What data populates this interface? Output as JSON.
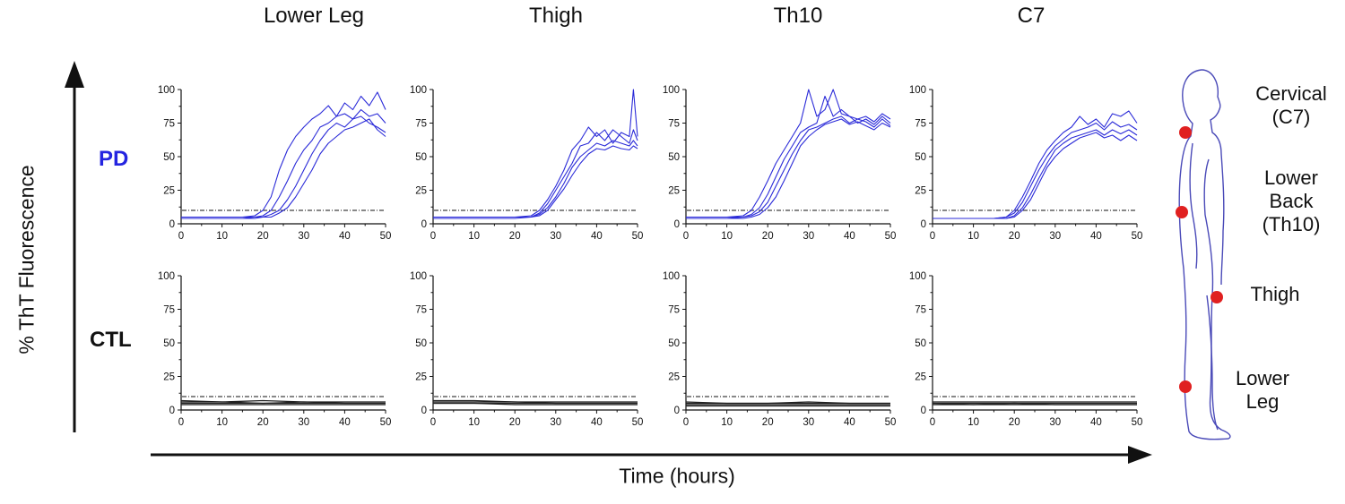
{
  "figure": {
    "y_axis_title": "% ThT Fluorescence",
    "x_axis_title": "Time (hours)",
    "columns": [
      "Lower Leg",
      "Thigh",
      "Th10",
      "C7"
    ],
    "rows": [
      {
        "label": "PD",
        "color": "#2424e0"
      },
      {
        "label": "CTL",
        "color": "#111111"
      }
    ],
    "body_sites": [
      "Cervical\n(C7)",
      "Lower\nBack\n(Th10)",
      "Thigh",
      "Lower\nLeg"
    ],
    "colors": {
      "pd_trace": "#2a2ad8",
      "ctl_trace": "#222222",
      "marker": "#e02020",
      "body_outline": "#4a4ab8",
      "threshold": "#111111"
    }
  },
  "chart_data": [
    {
      "type": "line",
      "panel": "Lower Leg / PD",
      "xlim": [
        0,
        50
      ],
      "ylim": [
        0,
        100
      ],
      "xticks": [
        0,
        10,
        20,
        30,
        40,
        50
      ],
      "yticks": [
        0,
        25,
        50,
        75,
        100
      ],
      "threshold": 10,
      "x": [
        0,
        5,
        10,
        15,
        18,
        20,
        22,
        24,
        26,
        28,
        30,
        32,
        34,
        36,
        38,
        40,
        42,
        44,
        46,
        48,
        50
      ],
      "series": [
        {
          "values": [
            5,
            5,
            5,
            5,
            6,
            10,
            20,
            40,
            55,
            65,
            72,
            78,
            82,
            88,
            80,
            90,
            85,
            95,
            88,
            98,
            85
          ]
        },
        {
          "values": [
            4,
            4,
            4,
            4,
            5,
            6,
            10,
            20,
            32,
            45,
            55,
            62,
            72,
            75,
            80,
            82,
            78,
            85,
            80,
            82,
            75
          ]
        },
        {
          "values": [
            5,
            5,
            5,
            5,
            5,
            5,
            7,
            10,
            18,
            28,
            40,
            52,
            62,
            70,
            75,
            72,
            78,
            80,
            75,
            72,
            68
          ]
        },
        {
          "values": [
            4,
            4,
            4,
            4,
            4,
            5,
            5,
            8,
            12,
            20,
            30,
            40,
            52,
            60,
            65,
            70,
            72,
            75,
            78,
            70,
            65
          ]
        }
      ]
    },
    {
      "type": "line",
      "panel": "Thigh / PD",
      "xlim": [
        0,
        50
      ],
      "ylim": [
        0,
        100
      ],
      "xticks": [
        0,
        10,
        20,
        30,
        40,
        50
      ],
      "yticks": [
        0,
        25,
        50,
        75,
        100
      ],
      "threshold": 10,
      "x": [
        0,
        5,
        10,
        15,
        20,
        24,
        26,
        28,
        30,
        32,
        34,
        36,
        38,
        40,
        42,
        44,
        46,
        48,
        49,
        50
      ],
      "series": [
        {
          "values": [
            5,
            5,
            5,
            5,
            5,
            6,
            10,
            18,
            28,
            40,
            55,
            62,
            72,
            65,
            70,
            60,
            68,
            65,
            100,
            65
          ]
        },
        {
          "values": [
            5,
            5,
            5,
            5,
            5,
            5,
            8,
            15,
            25,
            35,
            45,
            58,
            60,
            68,
            62,
            70,
            65,
            60,
            70,
            62
          ]
        },
        {
          "values": [
            4,
            4,
            4,
            4,
            4,
            5,
            7,
            12,
            20,
            30,
            42,
            50,
            55,
            60,
            58,
            62,
            60,
            58,
            62,
            58
          ]
        },
        {
          "values": [
            5,
            5,
            5,
            5,
            5,
            5,
            6,
            10,
            18,
            26,
            36,
            45,
            52,
            56,
            55,
            58,
            56,
            55,
            58,
            56
          ]
        }
      ]
    },
    {
      "type": "line",
      "panel": "Th10 / PD",
      "xlim": [
        0,
        50
      ],
      "ylim": [
        0,
        100
      ],
      "xticks": [
        0,
        10,
        20,
        30,
        40,
        50
      ],
      "yticks": [
        0,
        25,
        50,
        75,
        100
      ],
      "threshold": 10,
      "x": [
        0,
        5,
        10,
        14,
        16,
        18,
        20,
        22,
        24,
        26,
        28,
        30,
        32,
        34,
        36,
        38,
        40,
        42,
        44,
        46,
        48,
        50
      ],
      "series": [
        {
          "values": [
            5,
            5,
            5,
            6,
            10,
            20,
            32,
            45,
            55,
            65,
            75,
            100,
            80,
            85,
            100,
            82,
            80,
            78,
            80,
            76,
            82,
            78
          ]
        },
        {
          "values": [
            4,
            4,
            4,
            5,
            7,
            12,
            22,
            35,
            48,
            58,
            68,
            72,
            75,
            95,
            80,
            85,
            80,
            75,
            78,
            74,
            80,
            75
          ]
        },
        {
          "values": [
            5,
            5,
            5,
            5,
            6,
            9,
            16,
            28,
            40,
            52,
            62,
            70,
            72,
            75,
            78,
            80,
            75,
            78,
            76,
            72,
            78,
            73
          ]
        },
        {
          "values": [
            4,
            4,
            4,
            4,
            5,
            7,
            12,
            20,
            32,
            45,
            58,
            65,
            70,
            74,
            76,
            78,
            74,
            76,
            73,
            70,
            75,
            72
          ]
        }
      ]
    },
    {
      "type": "line",
      "panel": "C7 / PD",
      "xlim": [
        0,
        50
      ],
      "ylim": [
        0,
        100
      ],
      "xticks": [
        0,
        10,
        20,
        30,
        40,
        50
      ],
      "yticks": [
        0,
        25,
        50,
        75,
        100
      ],
      "threshold": 10,
      "x": [
        0,
        5,
        10,
        15,
        18,
        20,
        22,
        24,
        26,
        28,
        30,
        32,
        34,
        36,
        38,
        40,
        42,
        44,
        46,
        48,
        50
      ],
      "series": [
        {
          "values": [
            4,
            4,
            4,
            4,
            5,
            10,
            20,
            32,
            45,
            55,
            62,
            68,
            72,
            80,
            74,
            78,
            72,
            82,
            80,
            84,
            75
          ]
        },
        {
          "values": [
            4,
            4,
            4,
            4,
            5,
            8,
            16,
            28,
            40,
            50,
            58,
            63,
            68,
            70,
            72,
            75,
            70,
            76,
            72,
            74,
            70
          ]
        },
        {
          "values": [
            4,
            4,
            4,
            4,
            4,
            6,
            12,
            22,
            34,
            45,
            55,
            60,
            64,
            66,
            68,
            70,
            66,
            70,
            67,
            70,
            66
          ]
        },
        {
          "values": [
            4,
            4,
            4,
            4,
            4,
            5,
            10,
            18,
            30,
            42,
            50,
            56,
            60,
            64,
            66,
            68,
            64,
            66,
            62,
            66,
            62
          ]
        }
      ]
    },
    {
      "type": "line",
      "panel": "Lower Leg / CTL",
      "xlim": [
        0,
        50
      ],
      "ylim": [
        0,
        100
      ],
      "xticks": [
        0,
        10,
        20,
        30,
        40,
        50
      ],
      "yticks": [
        0,
        25,
        50,
        75,
        100
      ],
      "threshold": 10,
      "x": [
        0,
        10,
        20,
        30,
        40,
        50
      ],
      "series": [
        {
          "values": [
            7,
            6,
            7,
            6,
            6,
            6
          ]
        },
        {
          "values": [
            6,
            6,
            5,
            6,
            5,
            5
          ]
        },
        {
          "values": [
            5,
            5,
            5,
            5,
            5,
            5
          ]
        },
        {
          "values": [
            4,
            4,
            4,
            4,
            4,
            4
          ]
        }
      ]
    },
    {
      "type": "line",
      "panel": "Thigh / CTL",
      "xlim": [
        0,
        50
      ],
      "ylim": [
        0,
        100
      ],
      "xticks": [
        0,
        10,
        20,
        30,
        40,
        50
      ],
      "yticks": [
        0,
        25,
        50,
        75,
        100
      ],
      "threshold": 10,
      "x": [
        0,
        10,
        20,
        30,
        40,
        50
      ],
      "series": [
        {
          "values": [
            7,
            7,
            6,
            6,
            6,
            6
          ]
        },
        {
          "values": [
            6,
            6,
            6,
            5,
            5,
            5
          ]
        },
        {
          "values": [
            5,
            5,
            5,
            5,
            5,
            5
          ]
        },
        {
          "values": [
            5,
            5,
            4,
            4,
            4,
            4
          ]
        }
      ]
    },
    {
      "type": "line",
      "panel": "Th10 / CTL",
      "xlim": [
        0,
        50
      ],
      "ylim": [
        0,
        100
      ],
      "xticks": [
        0,
        10,
        20,
        30,
        40,
        50
      ],
      "yticks": [
        0,
        25,
        50,
        75,
        100
      ],
      "threshold": 10,
      "x": [
        0,
        10,
        20,
        30,
        40,
        50
      ],
      "series": [
        {
          "values": [
            6,
            5,
            5,
            6,
            5,
            5
          ]
        },
        {
          "values": [
            5,
            5,
            5,
            5,
            5,
            5
          ]
        },
        {
          "values": [
            4,
            4,
            4,
            4,
            4,
            4
          ]
        },
        {
          "values": [
            3,
            3,
            3,
            3,
            3,
            3
          ]
        }
      ]
    },
    {
      "type": "line",
      "panel": "C7 / CTL",
      "xlim": [
        0,
        50
      ],
      "ylim": [
        0,
        100
      ],
      "xticks": [
        0,
        10,
        20,
        30,
        40,
        50
      ],
      "yticks": [
        0,
        25,
        50,
        75,
        100
      ],
      "threshold": 10,
      "x": [
        0,
        10,
        20,
        30,
        40,
        50
      ],
      "series": [
        {
          "values": [
            6,
            6,
            6,
            6,
            6,
            6
          ]
        },
        {
          "values": [
            5,
            5,
            5,
            5,
            5,
            5
          ]
        },
        {
          "values": [
            5,
            4,
            5,
            4,
            4,
            4
          ]
        },
        {
          "values": [
            4,
            4,
            4,
            4,
            4,
            4
          ]
        }
      ]
    }
  ]
}
